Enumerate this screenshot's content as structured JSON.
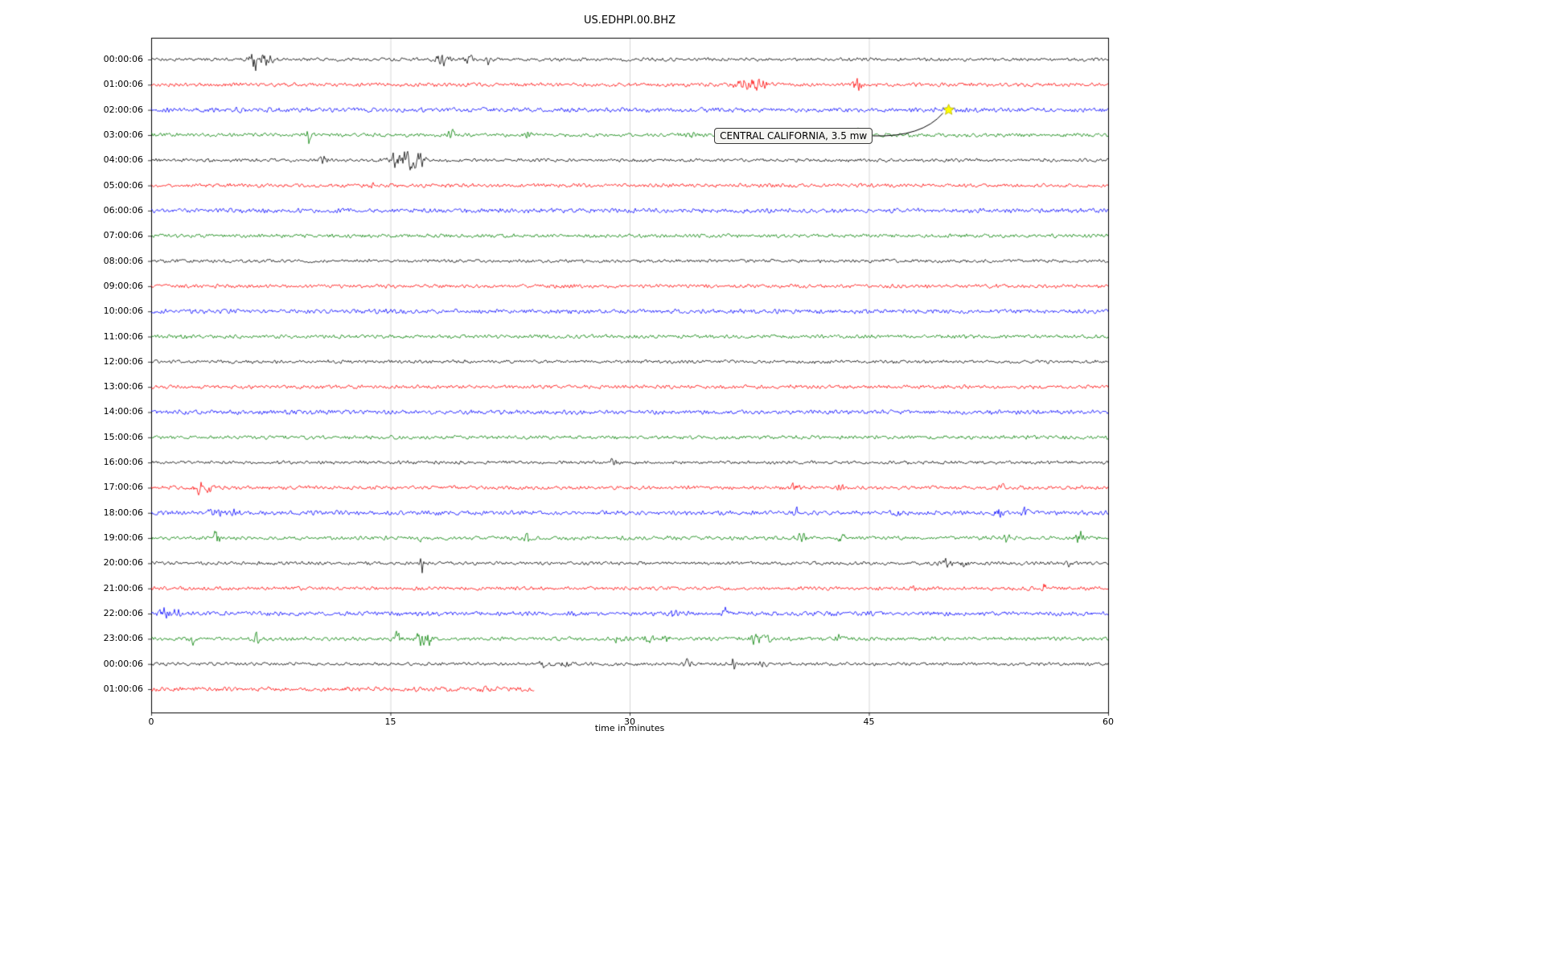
{
  "chart_data": {
    "type": "line",
    "subtype": "seismic-helicorder-dayplot",
    "title": "US.EDHPI.00.BHZ",
    "xlabel": "time in minutes",
    "ylabel": "",
    "xlim": [
      0,
      60
    ],
    "xticks": [
      "0",
      "15",
      "30",
      "45",
      "60"
    ],
    "xtick_values": [
      0,
      15,
      30,
      45,
      60
    ],
    "grid_x": [
      15,
      30,
      45
    ],
    "grid_color": "#cccccc",
    "border_color": "#000000",
    "legend": "none",
    "trace_color_cycle": [
      "#000000",
      "#ff0000",
      "#0000ff",
      "#008000"
    ],
    "annotation": {
      "label": "CENTRAL CALIFORNIA, 3.5 mw",
      "star_t_minutes": 50.0,
      "star_row": 2,
      "star_color": "#ffff00",
      "star_edge_color": "#b8b000",
      "box_t_minutes": 35.3,
      "box_row": 3
    },
    "rows": [
      {
        "label": "00:00:06",
        "color": "#000000",
        "extent": 1.0,
        "noise": 0.9,
        "events": [
          [
            6.5,
            0.5,
            7
          ],
          [
            7.1,
            0.8,
            6
          ],
          [
            18.2,
            0.7,
            5
          ],
          [
            19.9,
            0.5,
            4
          ],
          [
            21.2,
            0.15,
            7
          ]
        ]
      },
      {
        "label": "01:00:06",
        "color": "#ff0000",
        "extent": 1.0,
        "noise": 1.0,
        "events": [
          [
            37.3,
            0.9,
            7
          ],
          [
            38.2,
            0.5,
            5
          ],
          [
            44.2,
            0.4,
            6
          ]
        ]
      },
      {
        "label": "02:00:06",
        "color": "#0000ff",
        "extent": 1.0,
        "noise": 1.2,
        "events": [
          [
            5.5,
            0.3,
            7
          ]
        ]
      },
      {
        "label": "03:00:06",
        "color": "#008000",
        "extent": 1.0,
        "noise": 1.0,
        "events": [
          [
            9.9,
            0.25,
            8
          ],
          [
            18.8,
            0.3,
            6
          ],
          [
            23.6,
            0.3,
            4
          ],
          [
            34.0,
            0.4,
            4
          ],
          [
            44.3,
            0.5,
            5
          ]
        ]
      },
      {
        "label": "04:00:06",
        "color": "#000000",
        "extent": 1.0,
        "noise": 0.9,
        "events": [
          [
            10.8,
            0.4,
            3
          ],
          [
            15.3,
            0.6,
            7
          ],
          [
            16.2,
            0.7,
            9
          ],
          [
            16.9,
            0.4,
            6
          ]
        ]
      },
      {
        "label": "05:00:06",
        "color": "#ff0000",
        "extent": 1.0,
        "noise": 1.0,
        "events": [
          [
            13.8,
            0.3,
            2.5
          ]
        ]
      },
      {
        "label": "06:00:06",
        "color": "#0000ff",
        "extent": 1.0,
        "noise": 1.2,
        "events": []
      },
      {
        "label": "07:00:06",
        "color": "#008000",
        "extent": 1.0,
        "noise": 1.0,
        "events": []
      },
      {
        "label": "08:00:06",
        "color": "#000000",
        "extent": 1.0,
        "noise": 0.9,
        "events": []
      },
      {
        "label": "09:00:06",
        "color": "#ff0000",
        "extent": 1.0,
        "noise": 1.0,
        "events": []
      },
      {
        "label": "10:00:06",
        "color": "#0000ff",
        "extent": 1.0,
        "noise": 1.2,
        "events": []
      },
      {
        "label": "11:00:06",
        "color": "#008000",
        "extent": 1.0,
        "noise": 1.0,
        "events": [
          [
            2.0,
            0.5,
            2.5
          ]
        ]
      },
      {
        "label": "12:00:06",
        "color": "#000000",
        "extent": 1.0,
        "noise": 0.9,
        "events": []
      },
      {
        "label": "13:00:06",
        "color": "#ff0000",
        "extent": 1.0,
        "noise": 1.0,
        "events": []
      },
      {
        "label": "14:00:06",
        "color": "#0000ff",
        "extent": 1.0,
        "noise": 1.2,
        "events": []
      },
      {
        "label": "15:00:06",
        "color": "#008000",
        "extent": 1.0,
        "noise": 1.0,
        "events": []
      },
      {
        "label": "16:00:06",
        "color": "#000000",
        "extent": 1.0,
        "noise": 0.9,
        "events": [
          [
            28.9,
            0.4,
            3
          ]
        ]
      },
      {
        "label": "17:00:06",
        "color": "#ff0000",
        "extent": 1.0,
        "noise": 1.0,
        "events": [
          [
            3.1,
            0.5,
            6
          ],
          [
            3.7,
            0.3,
            5
          ],
          [
            40.3,
            0.4,
            4
          ],
          [
            43.2,
            0.3,
            4
          ],
          [
            53.3,
            0.4,
            3
          ]
        ]
      },
      {
        "label": "18:00:06",
        "color": "#0000ff",
        "extent": 1.0,
        "noise": 1.2,
        "events": [
          [
            4.0,
            0.6,
            4
          ],
          [
            5.2,
            0.5,
            4
          ],
          [
            40.4,
            0.3,
            5
          ],
          [
            46.7,
            0.3,
            4
          ],
          [
            53.2,
            0.4,
            5
          ],
          [
            54.8,
            0.3,
            4
          ]
        ]
      },
      {
        "label": "19:00:06",
        "color": "#008000",
        "extent": 1.0,
        "noise": 1.0,
        "events": [
          [
            4.1,
            0.25,
            8
          ],
          [
            16.9,
            0.2,
            4
          ],
          [
            23.6,
            0.25,
            7
          ],
          [
            40.7,
            0.35,
            8
          ],
          [
            43.3,
            0.3,
            5
          ],
          [
            53.6,
            0.3,
            5
          ],
          [
            58.2,
            0.35,
            6
          ]
        ]
      },
      {
        "label": "20:00:06",
        "color": "#000000",
        "extent": 1.0,
        "noise": 0.9,
        "events": [
          [
            17.0,
            0.12,
            14
          ],
          [
            49.8,
            0.6,
            3
          ],
          [
            51.0,
            0.4,
            3
          ],
          [
            57.6,
            0.25,
            6
          ]
        ]
      },
      {
        "label": "21:00:06",
        "color": "#ff0000",
        "extent": 1.0,
        "noise": 1.0,
        "events": [
          [
            47.8,
            0.3,
            2.5
          ],
          [
            56.0,
            0.15,
            8
          ]
        ]
      },
      {
        "label": "22:00:06",
        "color": "#0000ff",
        "extent": 1.0,
        "noise": 1.2,
        "events": [
          [
            0.9,
            0.5,
            5
          ],
          [
            1.6,
            0.3,
            4
          ],
          [
            32.7,
            0.3,
            5
          ],
          [
            36.0,
            0.25,
            6
          ]
        ]
      },
      {
        "label": "23:00:06",
        "color": "#008000",
        "extent": 1.0,
        "noise": 1.0,
        "events": [
          [
            2.6,
            0.3,
            6
          ],
          [
            6.6,
            0.3,
            6
          ],
          [
            15.4,
            0.4,
            6
          ],
          [
            16.9,
            0.4,
            8
          ],
          [
            17.4,
            0.3,
            6
          ],
          [
            29.3,
            0.4,
            4
          ],
          [
            31.2,
            0.4,
            4
          ],
          [
            32.3,
            0.3,
            4
          ],
          [
            37.9,
            0.4,
            7
          ],
          [
            38.6,
            0.3,
            6
          ],
          [
            43.1,
            0.3,
            5
          ]
        ]
      },
      {
        "label": "00:00:06",
        "color": "#000000",
        "extent": 1.0,
        "noise": 0.9,
        "events": [
          [
            24.5,
            0.5,
            3
          ],
          [
            25.8,
            0.5,
            3
          ],
          [
            33.6,
            0.3,
            4
          ],
          [
            36.5,
            0.12,
            10
          ],
          [
            38.4,
            0.3,
            3
          ]
        ]
      },
      {
        "label": "01:00:06",
        "color": "#ff0000",
        "extent": 0.4,
        "noise": 1.2,
        "events": [
          [
            21.0,
            0.4,
            2.5
          ]
        ]
      }
    ]
  }
}
